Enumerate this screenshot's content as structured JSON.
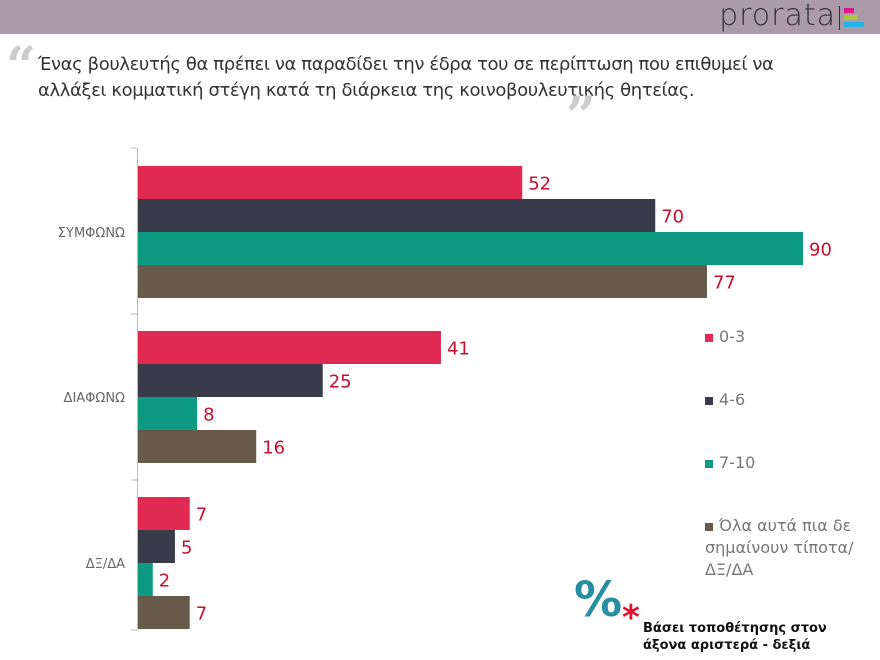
{
  "header": {
    "logo": "prorata"
  },
  "question": "Ένας βουλευτής θα πρέπει να παραδίδει την έδρα του σε περίπτωση που επιθυμεί να αλλάξει κομματική στέγη κατά τη διάρκεια της κοινοβουλευτικής θητείας.",
  "note": {
    "symbol": "%",
    "text": "Βάσει τοποθέτησης στον άξονα αριστερά - δεξιά"
  },
  "chart_data": {
    "type": "bar",
    "orientation": "horizontal",
    "categories": [
      "ΣΥΜΦΩΝΩ",
      "ΔΙΑΦΩΝΩ",
      "ΔΞ/ΔΑ"
    ],
    "series": [
      {
        "name": "0-3",
        "color": "#e12a52",
        "values": [
          52,
          41,
          7
        ]
      },
      {
        "name": "4-6",
        "color": "#393b4b",
        "values": [
          70,
          25,
          5
        ]
      },
      {
        "name": "7-10",
        "color": "#0c9a83",
        "values": [
          90,
          8,
          2
        ]
      },
      {
        "name": "Όλα αυτά πια δε σημαίνουν τίποτα/ΔΞ/ΔΑ",
        "color": "#675a4a",
        "values": [
          77,
          16,
          7
        ]
      }
    ],
    "xlim": [
      0,
      90
    ],
    "legend": "right",
    "label_color": "#c8102e"
  }
}
